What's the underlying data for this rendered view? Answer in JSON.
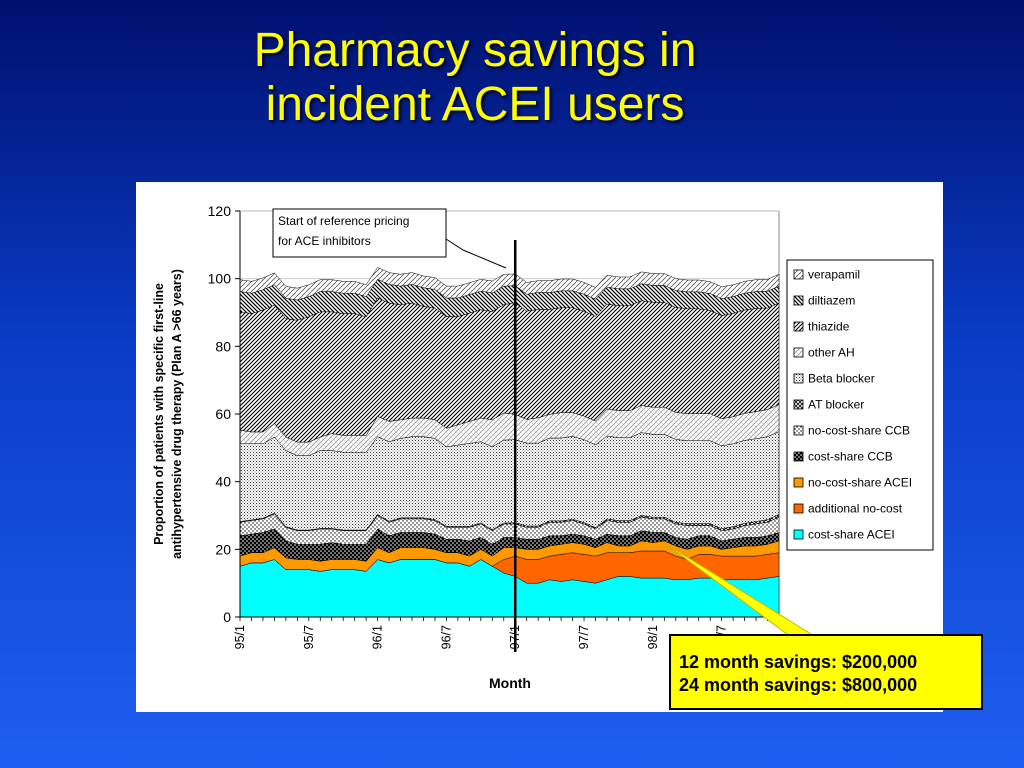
{
  "slide": {
    "title_line1": "Pharmacy savings in",
    "title_line2": "incident ACEI users",
    "title_color": "#ffff00"
  },
  "callout": {
    "line1": "12 month savings: $200,000",
    "line2": "24 month savings: $800,000",
    "fill": "#ffff00"
  },
  "chart_data": {
    "type": "area",
    "stacked": true,
    "title": "",
    "xlabel": "Month",
    "ylabel_line1": "Proportion of patients with specific first-line",
    "ylabel_line2": "antihypertensive drug therapy (Plan A >66 years)",
    "ylim": [
      0,
      120
    ],
    "yticks": [
      0,
      20,
      40,
      60,
      80,
      100,
      120
    ],
    "x_tick_labels": [
      "95/1",
      "95/7",
      "96/1",
      "96/7",
      "97/1",
      "97/7",
      "98/1",
      "98/7"
    ],
    "months": [
      "95/1",
      "95/2",
      "95/3",
      "95/4",
      "95/5",
      "95/6",
      "95/7",
      "95/8",
      "95/9",
      "95/10",
      "95/11",
      "95/12",
      "96/1",
      "96/2",
      "96/3",
      "96/4",
      "96/5",
      "96/6",
      "96/7",
      "96/8",
      "96/9",
      "96/10",
      "96/11",
      "96/12",
      "97/1",
      "97/2",
      "97/3",
      "97/4",
      "97/5",
      "97/6",
      "97/7",
      "97/8",
      "97/9",
      "97/10",
      "97/11",
      "97/12",
      "98/1",
      "98/2",
      "98/3",
      "98/4",
      "98/5",
      "98/6",
      "98/7",
      "98/8",
      "98/9",
      "98/10",
      "98/11",
      "98/12"
    ],
    "annotation": {
      "text_line1": "Start of reference pricing",
      "text_line2": "for ACE inhibitors",
      "x": "97/1"
    },
    "legend_position": "right",
    "series": [
      {
        "name": "cost-share ACEI",
        "color": "#00ffff",
        "pattern": "solid",
        "values": [
          15,
          16,
          16,
          17,
          14,
          14,
          14,
          13.5,
          14,
          14,
          14,
          13.5,
          17,
          16,
          17,
          17,
          17,
          17,
          16,
          16,
          15,
          17,
          15,
          13,
          12,
          10,
          10,
          11,
          10.5,
          11,
          10.5,
          10,
          11,
          12,
          12,
          11.5,
          11.5,
          11.5,
          11,
          11,
          11.5,
          11.5,
          11,
          11,
          11,
          11,
          11.5,
          12
        ]
      },
      {
        "name": "additional no-cost",
        "color": "#ff6600",
        "pattern": "solid",
        "values": [
          0,
          0,
          0,
          0,
          0,
          0,
          0,
          0,
          0,
          0,
          0,
          0,
          0,
          0,
          0,
          0,
          0,
          0,
          0,
          0,
          0,
          0,
          0,
          4,
          6,
          7,
          7,
          7,
          8,
          8,
          8,
          8,
          8,
          7,
          7,
          8,
          8,
          8,
          7,
          6,
          7,
          7,
          7,
          7,
          7,
          7,
          7,
          7
        ]
      },
      {
        "name": "no-cost-share ACEI",
        "color": "#ff9900",
        "pattern": "solid",
        "values": [
          3,
          3,
          3,
          3.5,
          3.5,
          3,
          3,
          3,
          3,
          3,
          3,
          3,
          3.5,
          3,
          3.5,
          3.5,
          3.5,
          3,
          3,
          3,
          3,
          3,
          3,
          3.5,
          2.5,
          3,
          3,
          3,
          3,
          3,
          3,
          2.5,
          3,
          2,
          2,
          3,
          2.5,
          3,
          3,
          3,
          2.5,
          2.5,
          2,
          2.5,
          3,
          3,
          3,
          3.5
        ]
      },
      {
        "name": "cost-share CCB",
        "color": "#000000",
        "pattern": "dots-white-on-black",
        "values": [
          6,
          5.5,
          6,
          5.5,
          5,
          4.5,
          4.5,
          5,
          5,
          4.5,
          4.5,
          5,
          5.5,
          5,
          4.5,
          4.5,
          4.5,
          4.5,
          4,
          4,
          4.5,
          3.5,
          3.5,
          3,
          3,
          3,
          3,
          3,
          2.5,
          2.5,
          2.5,
          2.5,
          2.5,
          3,
          3,
          3,
          3,
          2.5,
          2.5,
          3,
          3,
          3,
          2.5,
          2.5,
          2.5,
          2.5,
          2.5,
          2.5
        ]
      },
      {
        "name": "no-cost-share CCB",
        "color": "#ffffff",
        "pattern": "dots",
        "values": [
          4,
          4,
          4,
          4.5,
          4,
          4,
          4,
          4.5,
          4,
          4,
          4,
          4,
          4,
          4,
          4,
          4,
          4,
          4,
          3.5,
          3.5,
          4,
          4,
          4,
          4,
          4,
          3.5,
          3.5,
          4,
          4,
          4,
          3.5,
          3,
          4,
          4,
          4,
          4,
          4,
          4,
          4,
          4,
          3,
          3,
          3,
          3,
          3.5,
          4,
          4,
          4.5
        ]
      },
      {
        "name": "AT blocker",
        "color": "#555555",
        "pattern": "crosshatch",
        "values": [
          0.2,
          0.2,
          0.2,
          0.2,
          0.2,
          0.2,
          0.2,
          0.2,
          0.2,
          0.2,
          0.2,
          0.2,
          0.3,
          0.3,
          0.3,
          0.3,
          0.3,
          0.3,
          0.3,
          0.3,
          0.3,
          0.3,
          0.3,
          0.3,
          0.4,
          0.4,
          0.4,
          0.4,
          0.4,
          0.4,
          0.4,
          0.4,
          0.5,
          0.5,
          0.5,
          0.5,
          0.5,
          0.5,
          0.5,
          0.6,
          0.6,
          0.6,
          0.6,
          0.7,
          0.7,
          0.7,
          0.8,
          0.8
        ]
      },
      {
        "name": "Beta blocker",
        "color": "#aaaaaa",
        "pattern": "dense-dots",
        "values": [
          23,
          22.5,
          22,
          22.5,
          22.5,
          22,
          22,
          23,
          23,
          23,
          23,
          23,
          23,
          23.5,
          23.5,
          24,
          24,
          24,
          23.5,
          24,
          24.5,
          24,
          24.5,
          24.5,
          24.5,
          24.5,
          24.5,
          24.5,
          24.5,
          24.5,
          24.5,
          24.5,
          24.5,
          24.5,
          24.5,
          24.5,
          24.5,
          24.5,
          24.5,
          24.5,
          24.5,
          24.5,
          24.5,
          24.5,
          24.5,
          24.5,
          24.5,
          24.5
        ]
      },
      {
        "name": "other AH",
        "color": "#dddddd",
        "pattern": "diagonal-light",
        "values": [
          4,
          3.5,
          3.5,
          4,
          4,
          4,
          4,
          4,
          5,
          5,
          5,
          5,
          6,
          6,
          5.5,
          5.5,
          5.5,
          5.5,
          5.5,
          6,
          6.5,
          7,
          8,
          8,
          7.5,
          7,
          7.5,
          7,
          7.5,
          7,
          7,
          7,
          8,
          8,
          8,
          8,
          8,
          8,
          8,
          8,
          8,
          8,
          8,
          8,
          8,
          8,
          8,
          8
        ]
      },
      {
        "name": "thiazide",
        "color": "#333333",
        "pattern": "diagonal-dense",
        "values": [
          35,
          35,
          36,
          35,
          35,
          36,
          37,
          37,
          36,
          36,
          36,
          35,
          35,
          35,
          34,
          34,
          33,
          33,
          33,
          32,
          32,
          32,
          32,
          32,
          33,
          32,
          32,
          31,
          31,
          31,
          31,
          31,
          31,
          31,
          31,
          31,
          31,
          31,
          31,
          31,
          31,
          30.5,
          30.5,
          30.5,
          30.5,
          30.5,
          30,
          30
        ]
      },
      {
        "name": "diltiazem",
        "color": "#444444",
        "pattern": "backslash",
        "values": [
          6,
          6,
          6,
          6,
          6,
          6,
          6,
          6,
          6,
          6,
          6,
          6,
          5.5,
          5.5,
          5.5,
          5.5,
          5.5,
          5.5,
          5.5,
          5.5,
          5.5,
          5.5,
          5.5,
          5.5,
          5,
          5,
          5,
          5,
          5,
          5,
          5,
          5,
          5,
          5,
          5,
          5,
          5,
          5,
          5,
          5,
          5,
          5,
          5,
          5,
          5,
          5,
          5,
          5
        ]
      },
      {
        "name": "verapamil",
        "color": "#cccccc",
        "pattern": "slash-light",
        "values": [
          3.5,
          3.5,
          3.5,
          3.5,
          3.5,
          3.5,
          3.5,
          3.5,
          3.5,
          3.5,
          3.5,
          3.5,
          3.5,
          3.5,
          3.5,
          3.5,
          3.5,
          3.5,
          3.5,
          3.5,
          3.5,
          3.5,
          3.5,
          3.5,
          3.5,
          3.5,
          3.5,
          3.5,
          3.5,
          3.5,
          3.5,
          3.5,
          3.5,
          3.5,
          3.5,
          3.5,
          3.5,
          3.5,
          3.5,
          3.5,
          3.5,
          3.5,
          3.5,
          3.5,
          3.5,
          3.5,
          3.5,
          3.5
        ]
      }
    ]
  }
}
